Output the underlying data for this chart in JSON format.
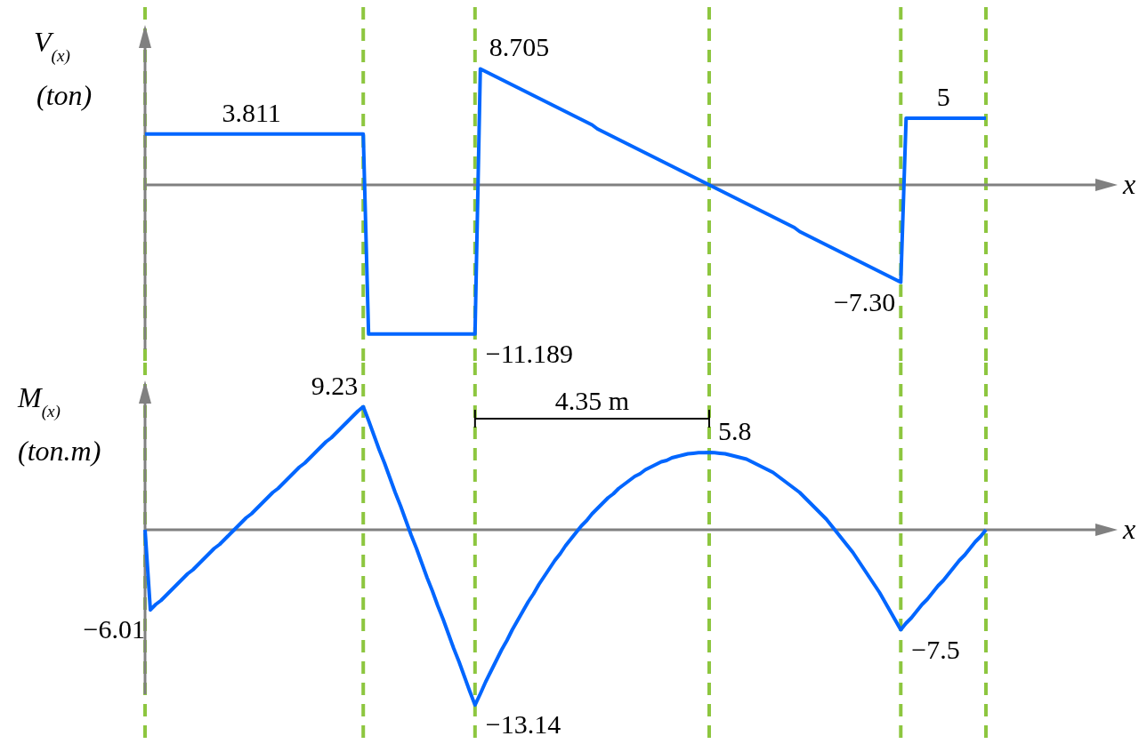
{
  "chart_data": [
    {
      "type": "line",
      "ylabel": "V$_{(x)}$ (ton)",
      "xlabel": "x",
      "grid": false,
      "marker": "none",
      "line_style": "solid",
      "categories": [
        null,
        null,
        null,
        null,
        null,
        null,
        null,
        null,
        null,
        null,
        null,
        null,
        null,
        null,
        null,
        null,
        null,
        null,
        null,
        null,
        null,
        null,
        null,
        null,
        null,
        null,
        null,
        null,
        null,
        null,
        null,
        null,
        null,
        null,
        null,
        null,
        null,
        null,
        null,
        null,
        null,
        null,
        null,
        null,
        null,
        null,
        null,
        null,
        null,
        null,
        null,
        null,
        null,
        null,
        null,
        null,
        null,
        null,
        null,
        null,
        null,
        null,
        null,
        null,
        null,
        null,
        null,
        null,
        null,
        null,
        null,
        null,
        null,
        null,
        null,
        null,
        null,
        null,
        null,
        null,
        null,
        null,
        null,
        null,
        null,
        null,
        null,
        null,
        null,
        null,
        null,
        null,
        null,
        null,
        null,
        null,
        null,
        null,
        null,
        null,
        null,
        null,
        null,
        null,
        null,
        null,
        null,
        null,
        null,
        null,
        null,
        null,
        null,
        null,
        null,
        null,
        null,
        null,
        null,
        null,
        null,
        null,
        null,
        null,
        null,
        null,
        null,
        null,
        null,
        null,
        null,
        null,
        null,
        null,
        null,
        null,
        null,
        null,
        null,
        null,
        null,
        null,
        null,
        null,
        null,
        null,
        null,
        null,
        null,
        null,
        null,
        null,
        null,
        null,
        null,
        null,
        null,
        null,
        null
      ],
      "series": [
        {
          "color": "#0066ff",
          "values": [
            3.811,
            3.811,
            3.811,
            3.811,
            3.811,
            3.811,
            3.811,
            3.811,
            3.811,
            3.811,
            3.811,
            3.811,
            3.811,
            3.811,
            3.811,
            3.811,
            3.811,
            3.811,
            3.811,
            3.811,
            3.811,
            3.811,
            3.811,
            3.811,
            3.811,
            3.811,
            3.811,
            3.811,
            3.811,
            3.811,
            3.811,
            3.811,
            3.811,
            3.811,
            3.811,
            3.811,
            3.811,
            3.811,
            3.811,
            3.811,
            3.811,
            3.811,
            -11.189,
            -11.189,
            -11.189,
            -11.189,
            -11.189,
            -11.189,
            -11.189,
            -11.189,
            -11.189,
            -11.189,
            -11.189,
            -11.189,
            -11.189,
            -11.189,
            -11.189,
            -11.189,
            -11.189,
            -11.189,
            -11.189,
            -11.189,
            -11.189,
            8.705,
            8.5,
            8.3,
            8.1,
            7.9,
            7.7,
            7.5,
            7.3,
            7.1,
            6.9,
            6.7,
            6.5,
            6.3,
            6.1,
            5.9,
            5.7,
            5.5,
            5.3,
            5.1,
            4.9,
            4.7,
            4.5,
            4.2,
            4.0,
            3.8,
            3.6,
            3.4,
            3.2,
            3.0,
            2.8,
            2.6,
            2.4,
            2.2,
            2.0,
            1.8,
            1.6,
            1.4,
            1.2,
            1.0,
            0.8,
            0.6,
            0.4,
            0.2,
            0.0,
            -0.2,
            -0.4,
            -0.6,
            -0.8,
            -1.0,
            -1.2,
            -1.4,
            -1.6,
            -1.8,
            -2.0,
            -2.2,
            -2.4,
            -2.6,
            -2.8,
            -3.0,
            -3.2,
            -3.5,
            -3.7,
            -3.9,
            -4.1,
            -4.3,
            -4.5,
            -4.7,
            -4.9,
            -5.1,
            -5.3,
            -5.5,
            -5.7,
            -5.9,
            -6.1,
            -6.3,
            -6.5,
            -6.7,
            -6.9,
            -7.1,
            -7.3,
            5,
            5,
            5,
            5,
            5,
            5,
            5,
            5,
            5,
            5,
            5,
            5,
            5,
            5,
            5,
            5
          ],
          "value_labels": [
            null,
            null,
            null,
            null,
            null,
            null,
            null,
            null,
            null,
            null,
            null,
            null,
            null,
            null,
            null,
            null,
            null,
            null,
            null,
            null,
            "3.811",
            null,
            null,
            null,
            null,
            null,
            null,
            null,
            null,
            null,
            null,
            null,
            null,
            null,
            null,
            null,
            null,
            null,
            null,
            null,
            null,
            null,
            null,
            null,
            null,
            null,
            null,
            null,
            null,
            null,
            null,
            null,
            null,
            null,
            null,
            null,
            null,
            null,
            null,
            null,
            null,
            null,
            "−11.189",
            "8.705",
            null,
            null,
            null,
            null,
            null,
            null,
            null,
            null,
            null,
            null,
            null,
            null,
            null,
            null,
            null,
            null,
            null,
            null,
            null,
            null,
            null,
            null,
            null,
            null,
            null,
            null,
            null,
            null,
            null,
            null,
            null,
            null,
            null,
            null,
            null,
            null,
            null,
            null,
            null,
            null,
            null,
            null,
            null,
            null,
            null,
            null,
            null,
            null,
            null,
            null,
            null,
            null,
            null,
            null,
            null,
            null,
            null,
            null,
            null,
            null,
            null,
            null,
            null,
            null,
            null,
            null,
            null,
            null,
            null,
            null,
            null,
            null,
            null,
            null,
            null,
            null,
            null,
            null,
            "−7.30",
            null,
            null,
            null,
            null,
            null,
            null,
            null,
            "5",
            null,
            null,
            null,
            null,
            null,
            null,
            null,
            null
          ]
        }
      ]
    },
    {
      "type": "line",
      "ylabel": "M$_{(x)}$ (ton.m)",
      "xlabel": "x",
      "grid": false,
      "marker": "none",
      "line_style": "solid",
      "categories": [
        null,
        null,
        null,
        null,
        null,
        null,
        null,
        null,
        null,
        null,
        null,
        null,
        null,
        null,
        null,
        null,
        null,
        null,
        null,
        null,
        null,
        null,
        null,
        null,
        null,
        null,
        null,
        null,
        null,
        null,
        null,
        null,
        null,
        null,
        null,
        null,
        null,
        null,
        null,
        null,
        null,
        null,
        null,
        null,
        null,
        null,
        null,
        null,
        null,
        null,
        null,
        null,
        null,
        null,
        null,
        null,
        null,
        null,
        null,
        null,
        null,
        null,
        null,
        null,
        null,
        null,
        null,
        null,
        null,
        null,
        null,
        null,
        null,
        null,
        null,
        null,
        null,
        null,
        null,
        null,
        null,
        null,
        null,
        null,
        null,
        null,
        null,
        null,
        null,
        null,
        null,
        null,
        null,
        null,
        null,
        null,
        null,
        null,
        null,
        null,
        null,
        null,
        null,
        null,
        null,
        null,
        null,
        null,
        null,
        null,
        null,
        null,
        null,
        null,
        null,
        null,
        null,
        null,
        null,
        null,
        null,
        null,
        null,
        null,
        null,
        null,
        null,
        null,
        null,
        null,
        null,
        null,
        null,
        null,
        null,
        null,
        null,
        null,
        null,
        null,
        null,
        null,
        null,
        null,
        null,
        null,
        null,
        null,
        null,
        null,
        null,
        null,
        null,
        null,
        null,
        null,
        null,
        null,
        null
      ],
      "series": [
        {
          "color": "#0066ff",
          "values": [
            0,
            -6.01,
            -5.6,
            -5.3,
            -4.9,
            -4.5,
            -4.1,
            -3.7,
            -3.3,
            -3.0,
            -2.6,
            -2.2,
            -1.8,
            -1.4,
            -1.1,
            -0.7,
            -0.3,
            0.1,
            0.5,
            0.9,
            1.2,
            1.6,
            2.0,
            2.4,
            2.8,
            3.1,
            3.5,
            3.9,
            4.3,
            4.7,
            5.0,
            5.4,
            5.8,
            6.2,
            6.6,
            6.9,
            7.3,
            7.7,
            8.1,
            8.5,
            8.9,
            9.23,
            8.2,
            7.1,
            6.0,
            5.0,
            3.9,
            2.8,
            1.8,
            0.7,
            -0.4,
            -1.4,
            -2.5,
            -3.6,
            -4.6,
            -5.7,
            -6.7,
            -7.8,
            -8.9,
            -9.9,
            -11.0,
            -12.1,
            -13.14,
            -12.3,
            -11.4,
            -10.6,
            -9.8,
            -9.0,
            -8.3,
            -7.5,
            -6.8,
            -6.1,
            -5.4,
            -4.8,
            -4.1,
            -3.5,
            -2.9,
            -2.3,
            -1.8,
            -1.2,
            -0.7,
            -0.2,
            0.3,
            0.7,
            1.2,
            1.6,
            2.0,
            2.4,
            2.7,
            3.1,
            3.4,
            3.7,
            4.0,
            4.2,
            4.5,
            4.7,
            4.9,
            5.1,
            5.2,
            5.4,
            5.5,
            5.6,
            5.7,
            5.74,
            5.78,
            5.79,
            5.8,
            5.78,
            5.74,
            5.7,
            5.6,
            5.5,
            5.4,
            5.3,
            5.1,
            4.9,
            4.7,
            4.5,
            4.3,
            4.0,
            3.7,
            3.4,
            3.1,
            2.8,
            2.4,
            2.0,
            1.6,
            1.2,
            0.8,
            0.3,
            -0.2,
            -0.7,
            -1.2,
            -1.7,
            -2.3,
            -2.9,
            -3.5,
            -4.1,
            -4.7,
            -5.4,
            -6.1,
            -6.8,
            -7.5,
            -7.0,
            -6.6,
            -6.1,
            -5.6,
            -5.2,
            -4.7,
            -4.2,
            -3.8,
            -3.3,
            -2.8,
            -2.3,
            -1.9,
            -1.4,
            -0.9,
            -0.5,
            0
          ],
          "value_labels": [
            null,
            "−6.01",
            null,
            null,
            null,
            null,
            null,
            null,
            null,
            null,
            null,
            null,
            null,
            null,
            null,
            null,
            null,
            null,
            null,
            null,
            null,
            null,
            null,
            null,
            null,
            null,
            null,
            null,
            null,
            null,
            null,
            null,
            null,
            null,
            null,
            null,
            null,
            null,
            null,
            null,
            null,
            "9.23",
            null,
            null,
            null,
            null,
            null,
            null,
            null,
            null,
            null,
            null,
            null,
            null,
            null,
            null,
            null,
            null,
            null,
            null,
            null,
            null,
            "−13.14",
            null,
            null,
            null,
            null,
            null,
            null,
            null,
            null,
            null,
            null,
            null,
            null,
            null,
            null,
            null,
            null,
            null,
            null,
            null,
            null,
            null,
            null,
            null,
            null,
            null,
            null,
            null,
            null,
            null,
            null,
            null,
            null,
            null,
            null,
            null,
            null,
            null,
            null,
            null,
            null,
            null,
            null,
            null,
            "5.8",
            null,
            null,
            null,
            null,
            null,
            null,
            null,
            null,
            null,
            null,
            null,
            null,
            null,
            null,
            null,
            null,
            null,
            null,
            null,
            null,
            null,
            null,
            null,
            null,
            null,
            null,
            null,
            null,
            null,
            null,
            null,
            null,
            null,
            null,
            null,
            "−7.5",
            null,
            null,
            null,
            null,
            null,
            null,
            null,
            null,
            null,
            null,
            null,
            null,
            null,
            null,
            null,
            null
          ]
        }
      ],
      "annotations": [
        "4.35 m"
      ]
    }
  ]
}
